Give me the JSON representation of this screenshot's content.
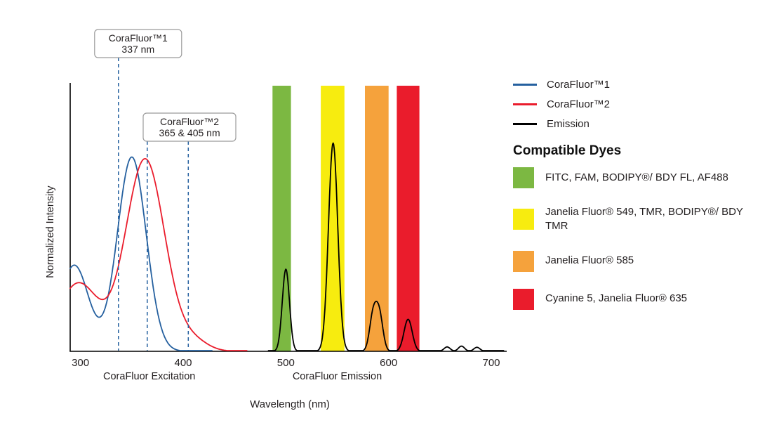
{
  "chart_data": {
    "type": "line",
    "xlabel": "Wavelength (nm)",
    "ylabel": "Normalized Intensity",
    "x_range_nm": [
      290,
      715
    ],
    "y_range": [
      0,
      1.33
    ],
    "x_ticks_nm": [
      300,
      400,
      500,
      600,
      700
    ],
    "grid": false,
    "legend_position": "right",
    "annotation_color": "#25609f",
    "x_axis_group_labels": [
      {
        "text": "CoraFluor Excitation",
        "center_nm": 367
      },
      {
        "text": "CoraFluor Emission",
        "center_nm": 550
      }
    ],
    "series": [
      {
        "id": "corafluor1-excitation",
        "name": "CoraFluor™1",
        "role": "excitation",
        "color": "#25609f",
        "peak_nm": 350,
        "draw_range_nm": [
          290,
          428
        ],
        "components": [
          {
            "center_nm": 350,
            "sigma_nm": 14,
            "amplitude": 0.97
          },
          {
            "center_nm": 294,
            "sigma_nm": 14,
            "amplitude": 0.43
          }
        ]
      },
      {
        "id": "corafluor2-excitation",
        "name": "CoraFluor™2",
        "role": "excitation",
        "color": "#ea1c2c",
        "peak_nm": 363,
        "draw_range_nm": [
          290,
          462
        ],
        "components": [
          {
            "center_nm": 363,
            "sigma_nm": 19,
            "amplitude": 0.96
          },
          {
            "center_nm": 298,
            "sigma_nm": 20,
            "amplitude": 0.34
          },
          {
            "center_nm": 410,
            "sigma_nm": 14,
            "amplitude": 0.05
          }
        ]
      },
      {
        "id": "emission",
        "name": "Emission",
        "role": "emission",
        "color": "#000000",
        "draw_range_nm": [
          483,
          712
        ],
        "components": [
          {
            "center_nm": 500,
            "sigma_nm": 3.5,
            "amplitude": 0.41
          },
          {
            "center_nm": 546,
            "sigma_nm": 4.5,
            "amplitude": 1.04
          },
          {
            "center_nm": 585,
            "sigma_nm": 3.5,
            "amplitude": 0.18
          },
          {
            "center_nm": 591,
            "sigma_nm": 3.5,
            "amplitude": 0.18
          },
          {
            "center_nm": 619,
            "sigma_nm": 4,
            "amplitude": 0.16
          },
          {
            "center_nm": 657,
            "sigma_nm": 3,
            "amplitude": 0.022
          },
          {
            "center_nm": 671,
            "sigma_nm": 3,
            "amplitude": 0.026
          },
          {
            "center_nm": 686,
            "sigma_nm": 3,
            "amplitude": 0.02
          }
        ]
      }
    ],
    "filter_bands": [
      {
        "name": "green",
        "color": "#7cb842",
        "from_nm": 487,
        "to_nm": 505,
        "compatible_dyes": "FITC, FAM, BODIPY®/ BDY FL, AF488"
      },
      {
        "name": "yellow",
        "color": "#f7ec0f",
        "from_nm": 534,
        "to_nm": 557,
        "compatible_dyes": "Janelia Fluor® 549, TMR, BODIPY®/ BDY TMR"
      },
      {
        "name": "orange",
        "color": "#f5a23c",
        "from_nm": 577,
        "to_nm": 600,
        "compatible_dyes": "Janelia Fluor® 585"
      },
      {
        "name": "red",
        "color": "#ea1c2c",
        "from_nm": 608,
        "to_nm": 630,
        "compatible_dyes": "Cyanine 5, Janelia Fluor® 635"
      }
    ],
    "annotations": [
      {
        "title": "CoraFluor™1",
        "subtitle": "337 nm",
        "lines_nm": [
          337
        ]
      },
      {
        "title": "CoraFluor™2",
        "subtitle": "365 & 405 nm",
        "lines_nm": [
          365,
          405
        ]
      }
    ]
  },
  "legend": {
    "entries": [
      {
        "label": "CoraFluor™1",
        "color": "#25609f"
      },
      {
        "label": "CoraFluor™2",
        "color": "#ea1c2c"
      },
      {
        "label": "Emission",
        "color": "#000000"
      }
    ],
    "heading": "Compatible Dyes",
    "dye_rows": [
      {
        "color": "#7cb842",
        "label": "FITC, FAM, BODIPY®/ BDY FL, AF488"
      },
      {
        "color": "#f7ec0f",
        "label": "Janelia Fluor® 549, TMR, BODIPY®/ BDY TMR"
      },
      {
        "color": "#f5a23c",
        "label": "Janelia Fluor® 585"
      },
      {
        "color": "#ea1c2c",
        "label": "Cyanine 5, Janelia Fluor® 635"
      }
    ]
  }
}
